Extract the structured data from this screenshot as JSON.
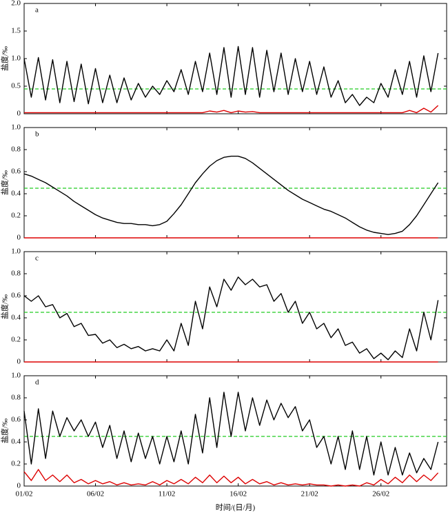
{
  "chart_data": [
    {
      "type": "line",
      "label": "a",
      "ylabel": "盐度/‰",
      "x": [
        0,
        0.5,
        1,
        1.5,
        2,
        2.5,
        3,
        3.5,
        4,
        4.5,
        5,
        5.5,
        6,
        6.5,
        7,
        7.5,
        8,
        8.5,
        9,
        9.5,
        10,
        10.5,
        11,
        11.5,
        12,
        12.5,
        13,
        13.5,
        14,
        14.5,
        15,
        15.5,
        16,
        16.5,
        17,
        17.5,
        18,
        18.5,
        19,
        19.5,
        20,
        20.5,
        21,
        21.5,
        22,
        22.5,
        23,
        23.5,
        24,
        24.5,
        25,
        25.5,
        26,
        26.5,
        27,
        27.5,
        28,
        28.5,
        29
      ],
      "xlim": [
        0,
        29.6
      ],
      "ylim": [
        0,
        2
      ],
      "yticks": [
        0,
        0.5,
        {
          "value": 1,
          "label": "1.0"
        },
        1.5,
        {
          "value": 2,
          "label": "2.0"
        }
      ],
      "threshold": 0.45,
      "threshold_color": "#22cc22",
      "series": [
        {
          "color": "#000000",
          "values": [
            1.0,
            0.3,
            1.02,
            0.25,
            0.98,
            0.2,
            0.95,
            0.22,
            0.9,
            0.18,
            0.82,
            0.2,
            0.7,
            0.2,
            0.65,
            0.25,
            0.55,
            0.3,
            0.5,
            0.35,
            0.6,
            0.4,
            0.8,
            0.35,
            0.95,
            0.4,
            1.1,
            0.35,
            1.2,
            0.3,
            1.22,
            0.35,
            1.2,
            0.3,
            1.15,
            0.4,
            1.1,
            0.35,
            1.0,
            0.4,
            0.95,
            0.35,
            0.85,
            0.3,
            0.6,
            0.2,
            0.35,
            0.15,
            0.3,
            0.2,
            0.55,
            0.3,
            0.8,
            0.35,
            0.95,
            0.3,
            1.05,
            0.4,
            1.1
          ]
        },
        {
          "color": "#dd0000",
          "values": [
            0.02,
            0.02,
            0.02,
            0.02,
            0.02,
            0.02,
            0.02,
            0.02,
            0.02,
            0.02,
            0.02,
            0.02,
            0.02,
            0.02,
            0.02,
            0.02,
            0.02,
            0.02,
            0.02,
            0.02,
            0.02,
            0.02,
            0.02,
            0.02,
            0.02,
            0.02,
            0.05,
            0.03,
            0.06,
            0.02,
            0.05,
            0.03,
            0.04,
            0.02,
            0.02,
            0.02,
            0.02,
            0.02,
            0.02,
            0.02,
            0.02,
            0.02,
            0.02,
            0.02,
            0.02,
            0.02,
            0.02,
            0.02,
            0.02,
            0.02,
            0.02,
            0.02,
            0.02,
            0.02,
            0.06,
            0.02,
            0.1,
            0.03,
            0.15
          ]
        }
      ]
    },
    {
      "type": "line",
      "label": "b",
      "ylabel": "盐度/‰",
      "x": [
        0,
        0.5,
        1,
        1.5,
        2,
        2.5,
        3,
        3.5,
        4,
        4.5,
        5,
        5.5,
        6,
        6.5,
        7,
        7.5,
        8,
        8.5,
        9,
        9.5,
        10,
        10.5,
        11,
        11.5,
        12,
        12.5,
        13,
        13.5,
        14,
        14.5,
        15,
        15.5,
        16,
        16.5,
        17,
        17.5,
        18,
        18.5,
        19,
        19.5,
        20,
        20.5,
        21,
        21.5,
        22,
        22.5,
        23,
        23.5,
        24,
        24.5,
        25,
        25.5,
        26,
        26.5,
        27,
        27.5,
        28,
        28.5,
        29
      ],
      "xlim": [
        0,
        29.6
      ],
      "ylim": [
        0,
        1
      ],
      "yticks": [
        0,
        0.2,
        0.4,
        0.6,
        0.8,
        {
          "value": 1,
          "label": "1.0"
        }
      ],
      "threshold": 0.45,
      "threshold_color": "#22cc22",
      "series": [
        {
          "color": "#000000",
          "values": [
            0.58,
            0.56,
            0.53,
            0.5,
            0.46,
            0.42,
            0.38,
            0.33,
            0.29,
            0.25,
            0.21,
            0.18,
            0.16,
            0.14,
            0.13,
            0.13,
            0.12,
            0.12,
            0.11,
            0.12,
            0.15,
            0.22,
            0.3,
            0.4,
            0.5,
            0.58,
            0.65,
            0.7,
            0.73,
            0.74,
            0.74,
            0.72,
            0.68,
            0.63,
            0.58,
            0.53,
            0.48,
            0.43,
            0.39,
            0.35,
            0.32,
            0.29,
            0.26,
            0.24,
            0.21,
            0.18,
            0.14,
            0.1,
            0.07,
            0.05,
            0.04,
            0.03,
            0.04,
            0.06,
            0.12,
            0.2,
            0.3,
            0.4,
            0.5
          ]
        },
        {
          "color": "#dd0000",
          "values": [
            0,
            0,
            0,
            0,
            0,
            0,
            0,
            0,
            0,
            0,
            0,
            0,
            0,
            0,
            0,
            0,
            0,
            0,
            0,
            0,
            0,
            0,
            0,
            0,
            0,
            0,
            0,
            0,
            0,
            0,
            0,
            0,
            0,
            0,
            0,
            0,
            0,
            0,
            0,
            0,
            0,
            0,
            0,
            0,
            0,
            0,
            0,
            0,
            0,
            0,
            0,
            0,
            0,
            0,
            0,
            0,
            0,
            0,
            0
          ]
        }
      ]
    },
    {
      "type": "line",
      "label": "c",
      "ylabel": "盐度/‰",
      "x": [
        0,
        0.5,
        1,
        1.5,
        2,
        2.5,
        3,
        3.5,
        4,
        4.5,
        5,
        5.5,
        6,
        6.5,
        7,
        7.5,
        8,
        8.5,
        9,
        9.5,
        10,
        10.5,
        11,
        11.5,
        12,
        12.5,
        13,
        13.5,
        14,
        14.5,
        15,
        15.5,
        16,
        16.5,
        17,
        17.5,
        18,
        18.5,
        19,
        19.5,
        20,
        20.5,
        21,
        21.5,
        22,
        22.5,
        23,
        23.5,
        24,
        24.5,
        25,
        25.5,
        26,
        26.5,
        27,
        27.5,
        28,
        28.5,
        29
      ],
      "xlim": [
        0,
        29.6
      ],
      "ylim": [
        0,
        1
      ],
      "yticks": [
        0,
        0.2,
        0.4,
        0.6,
        0.8,
        {
          "value": 1,
          "label": "1.0"
        }
      ],
      "threshold": 0.45,
      "threshold_color": "#22cc22",
      "series": [
        {
          "color": "#000000",
          "values": [
            0.6,
            0.55,
            0.6,
            0.5,
            0.52,
            0.4,
            0.44,
            0.32,
            0.35,
            0.24,
            0.25,
            0.17,
            0.2,
            0.13,
            0.16,
            0.12,
            0.14,
            0.1,
            0.12,
            0.1,
            0.2,
            0.1,
            0.35,
            0.15,
            0.55,
            0.3,
            0.68,
            0.5,
            0.75,
            0.65,
            0.77,
            0.7,
            0.75,
            0.68,
            0.7,
            0.55,
            0.62,
            0.45,
            0.55,
            0.35,
            0.45,
            0.3,
            0.35,
            0.22,
            0.3,
            0.15,
            0.18,
            0.08,
            0.12,
            0.03,
            0.08,
            0.02,
            0.1,
            0.04,
            0.3,
            0.1,
            0.45,
            0.2,
            0.56
          ]
        },
        {
          "color": "#dd0000",
          "values": [
            0,
            0,
            0,
            0,
            0,
            0,
            0,
            0,
            0,
            0,
            0,
            0,
            0,
            0,
            0,
            0,
            0,
            0,
            0,
            0,
            0,
            0,
            0,
            0,
            0,
            0,
            0,
            0,
            0,
            0,
            0,
            0,
            0,
            0,
            0,
            0,
            0,
            0,
            0,
            0,
            0,
            0,
            0,
            0,
            0,
            0,
            0,
            0,
            0,
            0,
            0,
            0,
            0,
            0,
            0,
            0,
            0,
            0,
            0
          ]
        }
      ]
    },
    {
      "type": "line",
      "label": "d",
      "ylabel": "盐度/‰",
      "xlabel": "时间/(日/月)",
      "x": [
        0,
        0.5,
        1,
        1.5,
        2,
        2.5,
        3,
        3.5,
        4,
        4.5,
        5,
        5.5,
        6,
        6.5,
        7,
        7.5,
        8,
        8.5,
        9,
        9.5,
        10,
        10.5,
        11,
        11.5,
        12,
        12.5,
        13,
        13.5,
        14,
        14.5,
        15,
        15.5,
        16,
        16.5,
        17,
        17.5,
        18,
        18.5,
        19,
        19.5,
        20,
        20.5,
        21,
        21.5,
        22,
        22.5,
        23,
        23.5,
        24,
        24.5,
        25,
        25.5,
        26,
        26.5,
        27,
        27.5,
        28,
        28.5,
        29
      ],
      "xlim": [
        0,
        29.6
      ],
      "xticks": [
        {
          "value": 0,
          "label": "01/02"
        },
        {
          "value": 5,
          "label": "06/02"
        },
        {
          "value": 10,
          "label": "11/02"
        },
        {
          "value": 15,
          "label": "16/02"
        },
        {
          "value": 20,
          "label": "21/02"
        },
        {
          "value": 25,
          "label": "26/02"
        }
      ],
      "ylim": [
        0,
        1
      ],
      "yticks": [
        0,
        0.2,
        0.4,
        0.6,
        0.8,
        {
          "value": 1,
          "label": "1.0"
        }
      ],
      "threshold": 0.45,
      "threshold_color": "#22cc22",
      "series": [
        {
          "color": "#000000",
          "values": [
            0.68,
            0.2,
            0.7,
            0.25,
            0.68,
            0.45,
            0.62,
            0.5,
            0.6,
            0.45,
            0.58,
            0.35,
            0.55,
            0.25,
            0.5,
            0.22,
            0.48,
            0.25,
            0.45,
            0.2,
            0.45,
            0.22,
            0.5,
            0.2,
            0.65,
            0.3,
            0.8,
            0.35,
            0.85,
            0.45,
            0.85,
            0.5,
            0.8,
            0.55,
            0.78,
            0.6,
            0.75,
            0.62,
            0.72,
            0.5,
            0.6,
            0.35,
            0.45,
            0.2,
            0.45,
            0.15,
            0.5,
            0.15,
            0.45,
            0.1,
            0.4,
            0.1,
            0.35,
            0.1,
            0.3,
            0.12,
            0.25,
            0.15,
            0.4
          ]
        },
        {
          "color": "#dd0000",
          "values": [
            0.13,
            0.05,
            0.15,
            0.05,
            0.1,
            0.04,
            0.1,
            0.03,
            0.06,
            0.02,
            0.05,
            0.02,
            0.04,
            0.01,
            0.03,
            0.01,
            0.02,
            0.01,
            0.04,
            0.01,
            0.05,
            0.02,
            0.06,
            0.02,
            0.08,
            0.03,
            0.1,
            0.03,
            0.09,
            0.03,
            0.08,
            0.02,
            0.06,
            0.02,
            0.04,
            0.01,
            0.03,
            0.01,
            0.02,
            0.01,
            0.02,
            0.01,
            0.01,
            0,
            0.01,
            0,
            0.01,
            0,
            0.03,
            0.01,
            0.06,
            0.02,
            0.08,
            0.03,
            0.1,
            0.04,
            0.1,
            0.05,
            0.12
          ]
        }
      ]
    }
  ]
}
